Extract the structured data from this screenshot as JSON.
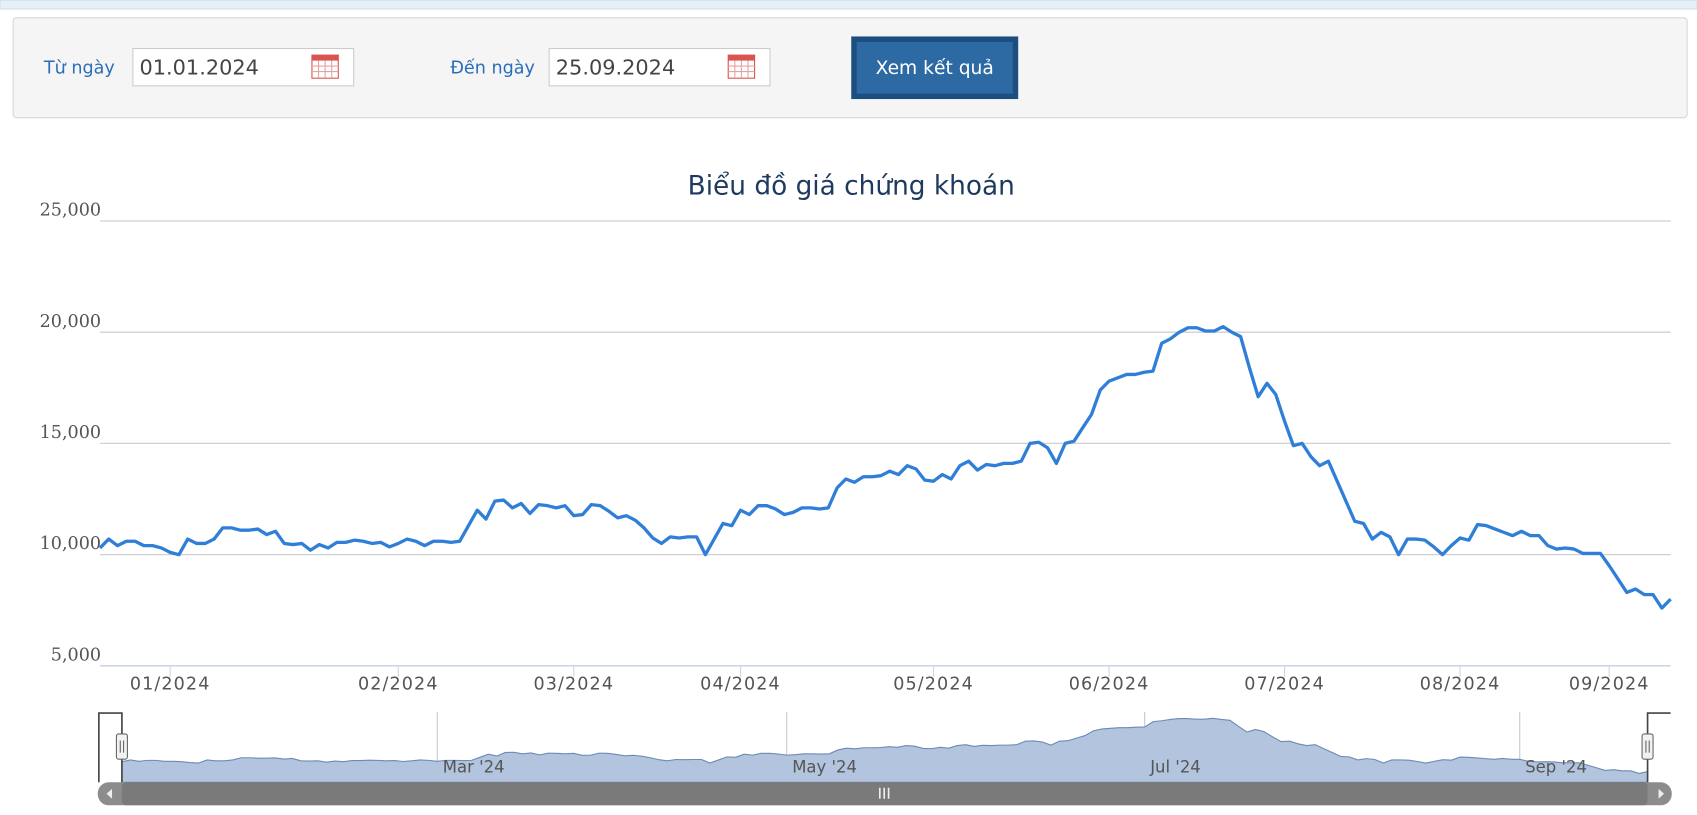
{
  "form": {
    "from_label": "Từ ngày",
    "from_value": "01.01.2024",
    "to_label": "Đến ngày",
    "to_value": "25.09.2024",
    "button": "Xem kết quả"
  },
  "chart_data": {
    "type": "line",
    "title": "Biểu đồ giá chứng khoán",
    "categories": [
      null,
      null,
      null,
      null,
      null,
      null,
      null,
      null,
      "01/2024",
      null,
      null,
      null,
      null,
      null,
      null,
      null,
      null,
      null,
      null,
      null,
      null,
      null,
      null,
      null,
      null,
      null,
      null,
      null,
      null,
      null,
      null,
      null,
      null,
      null,
      "02/2024",
      null,
      null,
      null,
      null,
      null,
      null,
      null,
      null,
      null,
      null,
      null,
      null,
      null,
      null,
      null,
      null,
      null,
      null,
      null,
      "03/2024",
      null,
      null,
      null,
      null,
      null,
      null,
      null,
      null,
      null,
      null,
      null,
      null,
      null,
      null,
      null,
      null,
      null,
      null,
      "04/2024",
      null,
      null,
      null,
      null,
      null,
      null,
      null,
      null,
      null,
      null,
      null,
      null,
      null,
      null,
      null,
      null,
      null,
      null,
      null,
      null,
      null,
      "05/2024",
      null,
      null,
      null,
      null,
      null,
      null,
      null,
      null,
      null,
      null,
      null,
      null,
      null,
      null,
      null,
      null,
      null,
      null,
      null,
      "06/2024",
      null,
      null,
      null,
      null,
      null,
      null,
      null,
      null,
      null,
      null,
      null,
      null,
      null,
      null,
      null,
      null,
      null,
      null,
      null,
      "07/2024",
      null,
      null,
      null,
      null,
      null,
      null,
      null,
      null,
      null,
      null,
      null,
      null,
      null,
      null,
      null,
      null,
      null,
      null,
      null,
      "08/2024",
      null,
      null,
      null,
      null,
      null,
      null,
      null,
      null,
      null,
      null,
      null,
      null,
      null,
      null,
      null,
      null,
      "09/2024",
      null,
      null,
      null,
      null,
      null,
      null,
      null
    ],
    "values": [
      10300,
      10700,
      10400,
      10600,
      10600,
      10400,
      10400,
      10300,
      10100,
      10000,
      10700,
      10500,
      10500,
      10700,
      11200,
      11200,
      11100,
      11100,
      11150,
      10900,
      11050,
      10500,
      10450,
      10500,
      10200,
      10450,
      10300,
      10550,
      10550,
      10650,
      10600,
      10500,
      10550,
      10350,
      10500,
      10700,
      10600,
      10400,
      10600,
      10600,
      10550,
      10600,
      11300,
      12000,
      11600,
      12400,
      12450,
      12100,
      12300,
      11850,
      12250,
      12200,
      12100,
      12200,
      11750,
      11800,
      12250,
      12200,
      11950,
      11650,
      11750,
      11550,
      11200,
      10750,
      10500,
      10800,
      10750,
      10800,
      10800,
      10000,
      10700,
      11400,
      11300,
      12000,
      11800,
      12200,
      12200,
      12050,
      11800,
      11900,
      12100,
      12100,
      12050,
      12100,
      13000,
      13400,
      13250,
      13500,
      13500,
      13550,
      13750,
      13600,
      14000,
      13850,
      13350,
      13300,
      13600,
      13400,
      14000,
      14200,
      13800,
      14050,
      14000,
      14100,
      14100,
      14200,
      15000,
      15050,
      14800,
      14100,
      15000,
      15100,
      15700,
      16300,
      17400,
      17800,
      17950,
      18100,
      18100,
      18200,
      18250,
      19500,
      19700,
      20000,
      20200,
      20200,
      20050,
      20050,
      20250,
      20000,
      19800,
      18400,
      17100,
      17700,
      17200,
      16000,
      14900,
      15000,
      14400,
      14000,
      14200,
      13300,
      12400,
      11500,
      11400,
      10700,
      11000,
      10800,
      10000,
      10700,
      10700,
      10650,
      10350,
      10000,
      10400,
      10750,
      10650,
      11350,
      11300,
      11150,
      11000,
      10850,
      11050,
      10850,
      10850,
      10400,
      10250,
      10300,
      10250,
      10050,
      10050,
      10050,
      9500,
      8900,
      8300,
      8450,
      8200,
      8200,
      7600,
      8000
    ],
    "color": "#2f7ed8",
    "ylim": [
      5000,
      25000
    ],
    "yticks": [
      {
        "value": 5000,
        "label": "5,000"
      },
      {
        "value": 10000,
        "label": "10,000"
      },
      {
        "value": 15000,
        "label": "15,000"
      },
      {
        "value": 20000,
        "label": "20,000"
      },
      {
        "value": 25000,
        "label": "25,000"
      }
    ],
    "grid": true,
    "navigator": {
      "color": "#b2c4de",
      "ticks": [
        {
          "value": 37,
          "label": "Mar '24"
        },
        {
          "value": 78,
          "label": "May '24"
        },
        {
          "value": 120,
          "label": "Jul '24"
        },
        {
          "value": 164,
          "label": "Sep '24"
        }
      ]
    }
  }
}
